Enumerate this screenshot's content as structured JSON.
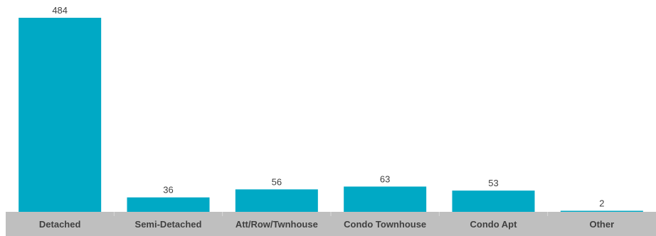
{
  "chart_data": {
    "type": "bar",
    "categories": [
      "Detached",
      "Semi-Detached",
      "Att/Row/Twnhouse",
      "Condo Townhouse",
      "Condo Apt",
      "Other"
    ],
    "values": [
      484,
      36,
      56,
      63,
      53,
      2
    ],
    "title": "",
    "xlabel": "",
    "ylabel": "",
    "ylim": [
      0,
      484
    ],
    "grid": false,
    "legend": "none",
    "bar_color": "#00A9C5",
    "axis_band_color": "#BFBFBF",
    "label_color": "#404040"
  }
}
